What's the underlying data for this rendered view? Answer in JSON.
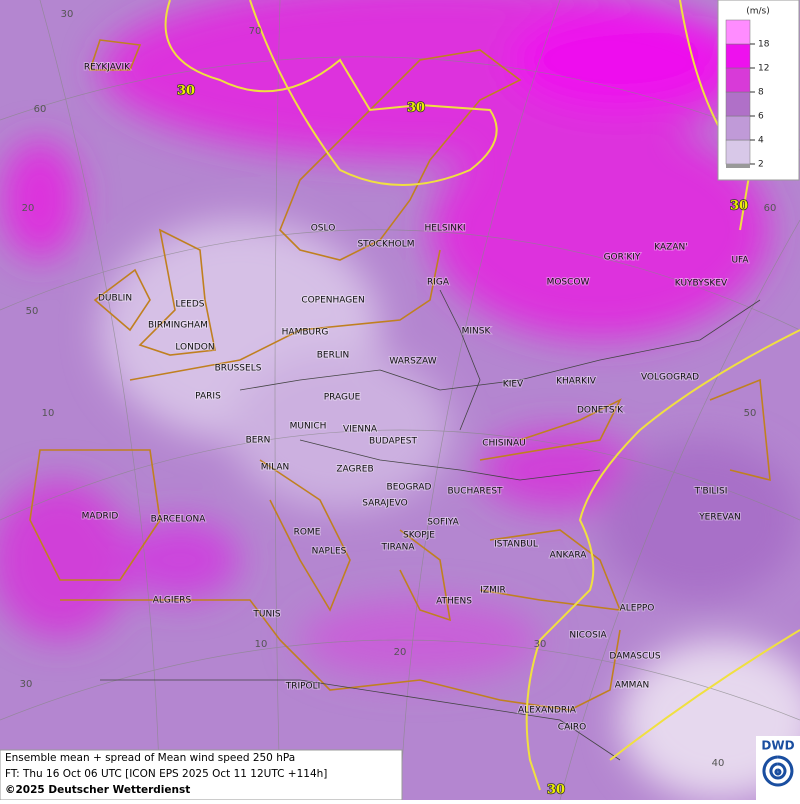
{
  "map": {
    "legend": {
      "unit": "(m/s)",
      "ticks": [
        2,
        4,
        6,
        8,
        12,
        18
      ]
    },
    "graticule_labels": [
      "30",
      "70",
      "60",
      "20",
      "50",
      "10",
      "30",
      "10",
      "20",
      "30",
      "40",
      "60",
      "50"
    ],
    "contour_labels": [
      "30",
      "30",
      "30",
      "30"
    ],
    "cities": [
      "REYKJAVIK",
      "OSLO",
      "STOCKHOLM",
      "HELSINKI",
      "RIGA",
      "MOSCOW",
      "GOR'KIY",
      "KAZAN'",
      "UFA",
      "KUYBYSKEV",
      "DUBLIN",
      "LEEDS",
      "BIRMINGHAM",
      "LONDON",
      "COPENHAGEN",
      "HAMBURG",
      "BERLIN",
      "MINSK",
      "WARSZAW",
      "BRUSSELS",
      "PARIS",
      "PRAGUE",
      "KIEV",
      "KHARKIV",
      "VOLGOGRAD",
      "DONETS'K",
      "MUNICH",
      "VIENNA",
      "BERN",
      "BUDAPEST",
      "CHISINAU",
      "MILAN",
      "ZAGREB",
      "BEOGRAD",
      "BUCHAREST",
      "T'BILISI",
      "SARAJEVO",
      "MADRID",
      "BARCELONA",
      "SOFIYA",
      "YEREVAN",
      "ROME",
      "SKOPJE",
      "ISTANBUL",
      "ANKARA",
      "NAPLES",
      "TIRANA",
      "IZMIR",
      "ALGIERS",
      "ATHENS",
      "ALEPPO",
      "TUNIS",
      "NICOSIA",
      "DAMASCUS",
      "AMMAN",
      "TRIPOLI",
      "ALEXANDRIA",
      "CAIRO"
    ]
  },
  "caption": {
    "line1": "Ensemble mean + spread of Mean wind speed 250 hPa",
    "line2": "FT: Thu 16 Oct 06 UTC [ICON EPS 2025 Oct 11 12UTC +114h]",
    "line3": "©2025 Deutscher Wetterdienst"
  },
  "logo": "DWD"
}
